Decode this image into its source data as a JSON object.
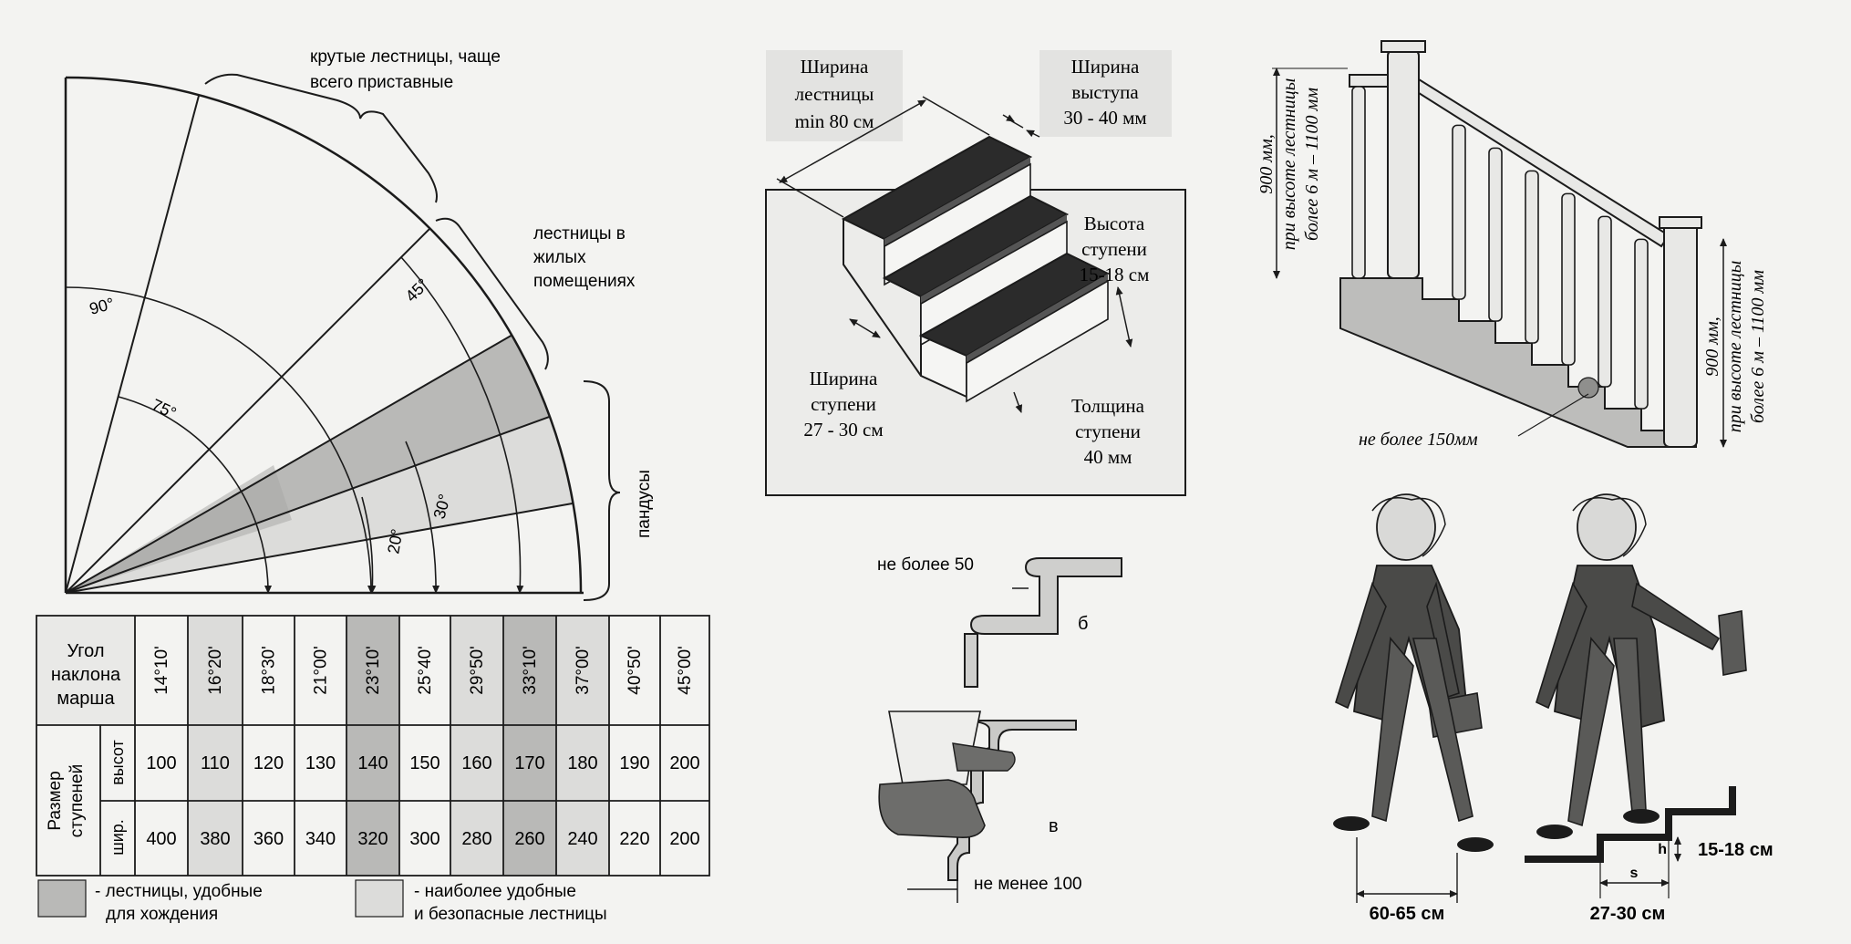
{
  "colors": {
    "paper": "#f3f3f1",
    "ink": "#1b1b1b",
    "shade_dark": "#b7b7b5",
    "shade_light": "#dcdcda",
    "tread": "#2b2b2b",
    "label_bg": "#e6e6e4"
  },
  "fan": {
    "steep_label_l1": "крутые лестницы, чаще",
    "steep_label_l2": "всего приставные",
    "residential_l1": "лестницы в",
    "residential_l2": "жилых",
    "residential_l3": "помещениях",
    "ramps": "пандусы",
    "angle_90": "90°",
    "angle_75": "75°",
    "angle_45": "45°",
    "angle_30": "30°",
    "angle_20": "20°"
  },
  "table": {
    "header": "Угол наклона марша",
    "header_l1": "Угол",
    "header_l2": "наклона",
    "header_l3": "марша",
    "size_label_l1": "Размер",
    "size_label_l2": "ступеней",
    "row_high": "высот",
    "row_wide": "шир.",
    "angles": [
      "14°10'",
      "16°20'",
      "18°30'",
      "21°00'",
      "23°10'",
      "25°40'",
      "29°50'",
      "33°10'",
      "37°00'",
      "40°50'",
      "45°00'"
    ],
    "heights": [
      "100",
      "110",
      "120",
      "130",
      "140",
      "150",
      "160",
      "170",
      "180",
      "190",
      "200"
    ],
    "widths": [
      "400",
      "380",
      "360",
      "340",
      "320",
      "300",
      "280",
      "260",
      "240",
      "220",
      "200"
    ]
  },
  "legend": {
    "comfortable_l1": "- лестницы, удобные",
    "comfortable_l2": "для хождения",
    "safe_l1": "- наиболее удобные",
    "safe_l2": "и безопасные лестницы"
  },
  "stairs3d": {
    "width_l1": "Ширина",
    "width_l2": "лестницы",
    "width_l3": "min 80 см",
    "nosing_l1": "Ширина",
    "nosing_l2": "выступа",
    "nosing_l3": "30 - 40 мм",
    "riser_l1": "Высота",
    "riser_l2": "ступени",
    "riser_l3": "15-18 см",
    "tread_l1": "Ширина",
    "tread_l2": "ступени",
    "tread_l3": "27 - 30 см",
    "thick_l1": "Толщина",
    "thick_l2": "ступени",
    "thick_l3": "40 мм"
  },
  "details": {
    "max50": "не более 50",
    "label_b": "б",
    "label_v": "в",
    "min100": "не менее 100"
  },
  "railing": {
    "left_l1": "900 мм,",
    "left_l2": "при высоте лестницы",
    "left_l3": "более 6 м – 1100 мм",
    "right_l1": "900 мм,",
    "right_l2": "при высоте лестницы",
    "right_l3": "более 6 м – 1100 мм",
    "gap": "не более 150мм"
  },
  "walking": {
    "stride": "60-65 см",
    "step_h": "h",
    "step_s": "s",
    "rise": "15-18 см",
    "run": "27-30 см"
  }
}
